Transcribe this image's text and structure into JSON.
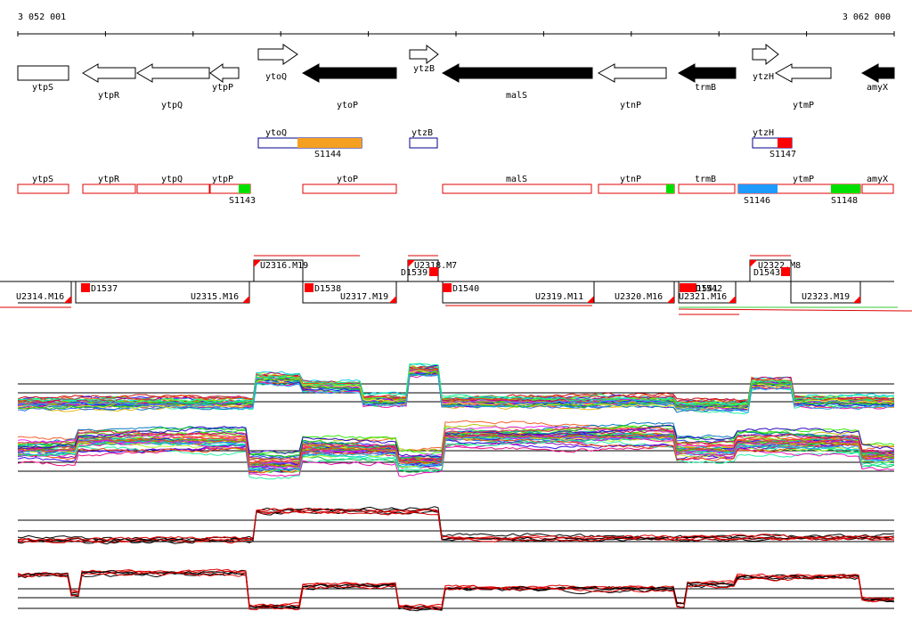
{
  "ruler": {
    "start_label": "3 052 001",
    "end_label": "3 062 000"
  },
  "genes": [
    {
      "name": "ytpS",
      "dir": "R",
      "fill": "white"
    },
    {
      "name": "ytpR",
      "dir": "L",
      "fill": "white"
    },
    {
      "name": "ytpQ",
      "dir": "L",
      "fill": "white"
    },
    {
      "name": "ytpP",
      "dir": "L",
      "fill": "white"
    },
    {
      "name": "ytoQ",
      "dir": "R",
      "fill": "white"
    },
    {
      "name": "ytoP",
      "dir": "L",
      "fill": "black"
    },
    {
      "name": "ytzB",
      "dir": "R",
      "fill": "white"
    },
    {
      "name": "malS",
      "dir": "L",
      "fill": "black"
    },
    {
      "name": "ytnP",
      "dir": "L",
      "fill": "white"
    },
    {
      "name": "trmB",
      "dir": "L",
      "fill": "black"
    },
    {
      "name": "ytzH",
      "dir": "R",
      "fill": "white"
    },
    {
      "name": "ytmP",
      "dir": "L",
      "fill": "white"
    },
    {
      "name": "amyX",
      "dir": "L",
      "fill": "black"
    }
  ],
  "feature_rows": {
    "row1": [
      {
        "name": "ytoQ",
        "stroke": "blue"
      },
      {
        "name": "ytzB",
        "stroke": "blue"
      },
      {
        "name": "ytzH",
        "stroke": "blue"
      }
    ],
    "row1_segments": [
      {
        "name": "S1144",
        "color": "#f5a020"
      },
      {
        "name": "S1147",
        "color": "#ff0000"
      }
    ],
    "row2": [
      {
        "name": "ytpS"
      },
      {
        "name": "ytpR"
      },
      {
        "name": "ytpQ"
      },
      {
        "name": "ytpP"
      },
      {
        "name": "ytoP"
      },
      {
        "name": "malS"
      },
      {
        "name": "ytnP"
      },
      {
        "name": "trmB"
      },
      {
        "name": "ytmP"
      },
      {
        "name": "amyX"
      }
    ],
    "row2_segments": [
      {
        "name": "S1143",
        "color": "#00e000"
      },
      {
        "name": "S1146",
        "color": "#1e9bff"
      },
      {
        "name": "S1148",
        "color": "#00e000"
      }
    ],
    "ytnP_tick_color": "#00e000"
  },
  "transcript_units": [
    {
      "name": "U2314.M16"
    },
    {
      "name": "U2315.M16"
    },
    {
      "name": "U2316.M19"
    },
    {
      "name": "U2317.M19"
    },
    {
      "name": "U2318.M7"
    },
    {
      "name": "U2319.M11"
    },
    {
      "name": "U2320.M16"
    },
    {
      "name": "U2321.M16"
    },
    {
      "name": "U2322.M8"
    },
    {
      "name": "U2323.M19"
    }
  ],
  "downshifts": [
    {
      "name": "D1537"
    },
    {
      "name": "D1538"
    },
    {
      "name": "D1539"
    },
    {
      "name": "D1540"
    },
    {
      "name": "D1541"
    },
    {
      "name": "D1542"
    },
    {
      "name": "D1543"
    }
  ],
  "colors": {
    "accent": "#ff0000",
    "gene_black": "#000000",
    "track_green": "#33cc33"
  }
}
